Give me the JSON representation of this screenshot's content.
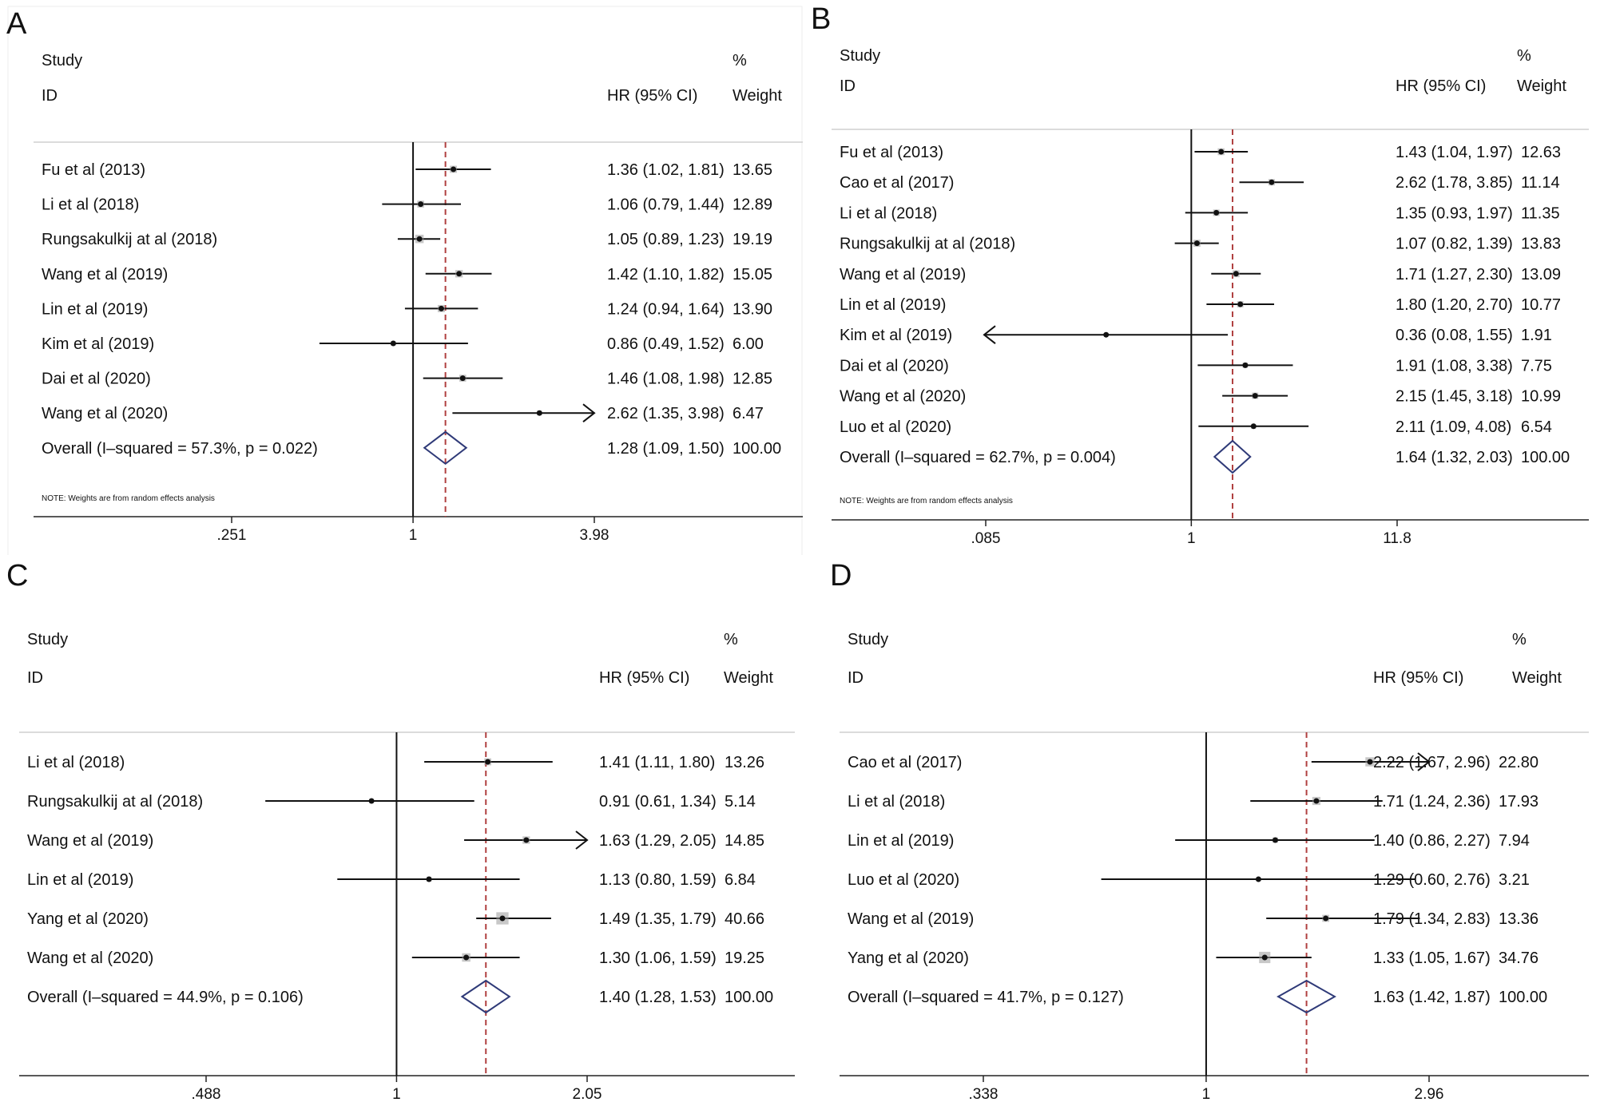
{
  "figure": {
    "panels": [
      "A",
      "B",
      "C",
      "D"
    ],
    "study_header": "Study",
    "id_header": "ID",
    "hr_header": "HR (95% CI)",
    "pct_header": "%",
    "weight_header": "Weight"
  },
  "chart_data": [
    {
      "type": "forest",
      "panel": "A",
      "scale": "log",
      "xlim": [
        0.251,
        3.98
      ],
      "ticks": [
        ".251",
        "1",
        "3.98"
      ],
      "tick_values": [
        0.251,
        1,
        3.98
      ],
      "studies": [
        {
          "label": "Fu et al (2013)",
          "hr": 1.36,
          "lo": 1.02,
          "hi": 1.81,
          "ci_text": "1.36 (1.02, 1.81)",
          "weight": "13.65"
        },
        {
          "label": "Li et al (2018)",
          "hr": 1.06,
          "lo": 0.79,
          "hi": 1.44,
          "ci_text": "1.06 (0.79, 1.44)",
          "weight": "12.89"
        },
        {
          "label": "Rungsakulkij at al (2018)",
          "hr": 1.05,
          "lo": 0.89,
          "hi": 1.23,
          "ci_text": "1.05 (0.89, 1.23)",
          "weight": "19.19"
        },
        {
          "label": "Wang et al (2019)",
          "hr": 1.42,
          "lo": 1.1,
          "hi": 1.82,
          "ci_text": "1.42 (1.10, 1.82)",
          "weight": "15.05"
        },
        {
          "label": "Lin et al (2019)",
          "hr": 1.24,
          "lo": 0.94,
          "hi": 1.64,
          "ci_text": "1.24 (0.94, 1.64)",
          "weight": "13.90"
        },
        {
          "label": "Kim et al (2019)",
          "hr": 0.86,
          "lo": 0.49,
          "hi": 1.52,
          "ci_text": "0.86 (0.49, 1.52)",
          "weight": "6.00"
        },
        {
          "label": "Dai et al (2020)",
          "hr": 1.46,
          "lo": 1.08,
          "hi": 1.98,
          "ci_text": "1.46 (1.08, 1.98)",
          "weight": "12.85"
        },
        {
          "label": "Wang et al (2020)",
          "hr": 2.62,
          "lo": 1.35,
          "hi": 3.98,
          "ci_text": "2.62 (1.35, 3.98)",
          "weight": "6.47",
          "arrow": "right"
        }
      ],
      "overall": {
        "label": "Overall  (I–squared = 57.3%, p = 0.022)",
        "hr": 1.28,
        "lo": 1.09,
        "hi": 1.5,
        "ci_text": "1.28 (1.09, 1.50)",
        "weight": "100.00"
      },
      "note": "NOTE: Weights are from random effects analysis"
    },
    {
      "type": "forest",
      "panel": "B",
      "scale": "log",
      "xlim": [
        0.085,
        11.8
      ],
      "ticks": [
        ".085",
        "1",
        "11.8"
      ],
      "tick_values": [
        0.085,
        1,
        11.8
      ],
      "studies": [
        {
          "label": "Fu et al (2013)",
          "hr": 1.43,
          "lo": 1.04,
          "hi": 1.97,
          "ci_text": "1.43 (1.04, 1.97)",
          "weight": "12.63"
        },
        {
          "label": "Cao et al (2017)",
          "hr": 2.62,
          "lo": 1.78,
          "hi": 3.85,
          "ci_text": "2.62 (1.78, 3.85)",
          "weight": "11.14"
        },
        {
          "label": "Li et al (2018)",
          "hr": 1.35,
          "lo": 0.93,
          "hi": 1.97,
          "ci_text": "1.35 (0.93, 1.97)",
          "weight": "11.35"
        },
        {
          "label": "Rungsakulkij at al (2018)",
          "hr": 1.07,
          "lo": 0.82,
          "hi": 1.39,
          "ci_text": "1.07 (0.82, 1.39)",
          "weight": "13.83"
        },
        {
          "label": "Wang et al (2019)",
          "hr": 1.71,
          "lo": 1.27,
          "hi": 2.3,
          "ci_text": "1.71 (1.27, 2.30)",
          "weight": "13.09"
        },
        {
          "label": "Lin et al (2019)",
          "hr": 1.8,
          "lo": 1.2,
          "hi": 2.7,
          "ci_text": "1.80 (1.20, 2.70)",
          "weight": "10.77"
        },
        {
          "label": "Kim et al (2019)",
          "hr": 0.36,
          "lo": 0.08,
          "hi": 1.55,
          "ci_text": "0.36 (0.08, 1.55)",
          "weight": "1.91",
          "arrow": "left"
        },
        {
          "label": "Dai et al (2020)",
          "hr": 1.91,
          "lo": 1.08,
          "hi": 3.38,
          "ci_text": "1.91 (1.08, 3.38)",
          "weight": "7.75"
        },
        {
          "label": "Wang et al (2020)",
          "hr": 2.15,
          "lo": 1.45,
          "hi": 3.18,
          "ci_text": "2.15 (1.45, 3.18)",
          "weight": "10.99"
        },
        {
          "label": "Luo et al (2020)",
          "hr": 2.11,
          "lo": 1.09,
          "hi": 4.08,
          "ci_text": "2.11 (1.09, 4.08)",
          "weight": "6.54"
        }
      ],
      "overall": {
        "label": "Overall  (I–squared = 62.7%, p = 0.004)",
        "hr": 1.64,
        "lo": 1.32,
        "hi": 2.03,
        "ci_text": "1.64 (1.32, 2.03)",
        "weight": "100.00"
      },
      "note": "NOTE: Weights are from random effects analysis"
    },
    {
      "type": "forest",
      "panel": "C",
      "scale": "log",
      "xlim": [
        0.488,
        2.05
      ],
      "ticks": [
        ".488",
        "1",
        "2.05"
      ],
      "tick_values": [
        0.488,
        1,
        2.05
      ],
      "studies": [
        {
          "label": "Li et al (2018)",
          "hr": 1.41,
          "lo": 1.11,
          "hi": 1.8,
          "ci_text": "1.41 (1.11, 1.80)",
          "weight": "13.26"
        },
        {
          "label": "Rungsakulkij at al (2018)",
          "hr": 0.91,
          "lo": 0.61,
          "hi": 1.34,
          "ci_text": "0.91 (0.61, 1.34)",
          "weight": "5.14"
        },
        {
          "label": "Wang et al (2019)",
          "hr": 1.63,
          "lo": 1.29,
          "hi": 2.05,
          "ci_text": "1.63 (1.29, 2.05)",
          "weight": "14.85",
          "arrow": "right"
        },
        {
          "label": "Lin et al (2019)",
          "hr": 1.13,
          "lo": 0.8,
          "hi": 1.59,
          "ci_text": "1.13 (0.80, 1.59)",
          "weight": "6.84"
        },
        {
          "label": "Yang et al (2020)",
          "hr": 1.49,
          "lo": 1.35,
          "hi": 1.79,
          "ci_text": "1.49 (1.35, 1.79)",
          "weight": "40.66"
        },
        {
          "label": "Wang et al (2020)",
          "hr": 1.3,
          "lo": 1.06,
          "hi": 1.59,
          "ci_text": "1.30 (1.06, 1.59)",
          "weight": "19.25"
        }
      ],
      "overall": {
        "label": "Overall  (I–squared = 44.9%, p = 0.106)",
        "hr": 1.4,
        "lo": 1.28,
        "hi": 1.53,
        "ci_text": "1.40 (1.28, 1.53)",
        "weight": "100.00"
      },
      "note": ""
    },
    {
      "type": "forest",
      "panel": "D",
      "scale": "log",
      "xlim": [
        0.338,
        2.96
      ],
      "ticks": [
        ".338",
        "1",
        "2.96"
      ],
      "tick_values": [
        0.338,
        1,
        2.96
      ],
      "studies": [
        {
          "label": "Cao et al (2017)",
          "hr": 2.22,
          "lo": 1.67,
          "hi": 2.96,
          "ci_text": "2.22 (1.67, 2.96)",
          "weight": "22.80",
          "arrow": "right"
        },
        {
          "label": "Li et al (2018)",
          "hr": 1.71,
          "lo": 1.24,
          "hi": 2.36,
          "ci_text": "1.71 (1.24, 2.36)",
          "weight": "17.93"
        },
        {
          "label": "Lin et al (2019)",
          "hr": 1.4,
          "lo": 0.86,
          "hi": 2.27,
          "ci_text": "1.40 (0.86, 2.27)",
          "weight": "7.94"
        },
        {
          "label": "Luo et al (2020)",
          "hr": 1.29,
          "lo": 0.6,
          "hi": 2.76,
          "ci_text": "1.29 (0.60, 2.76)",
          "weight": "3.21"
        },
        {
          "label": "Wang et al (2019)",
          "hr": 1.79,
          "lo": 1.34,
          "hi": 2.83,
          "ci_text": "1.79 (1.34, 2.83)",
          "weight": "13.36"
        },
        {
          "label": "Yang et al (2020)",
          "hr": 1.33,
          "lo": 1.05,
          "hi": 1.67,
          "ci_text": "1.33 (1.05, 1.67)",
          "weight": "34.76"
        }
      ],
      "overall": {
        "label": "Overall  (I–squared = 41.7%, p = 0.127)",
        "hr": 1.63,
        "lo": 1.42,
        "hi": 1.87,
        "ci_text": "1.63 (1.42, 1.87)",
        "weight": "100.00"
      },
      "note": ""
    }
  ]
}
